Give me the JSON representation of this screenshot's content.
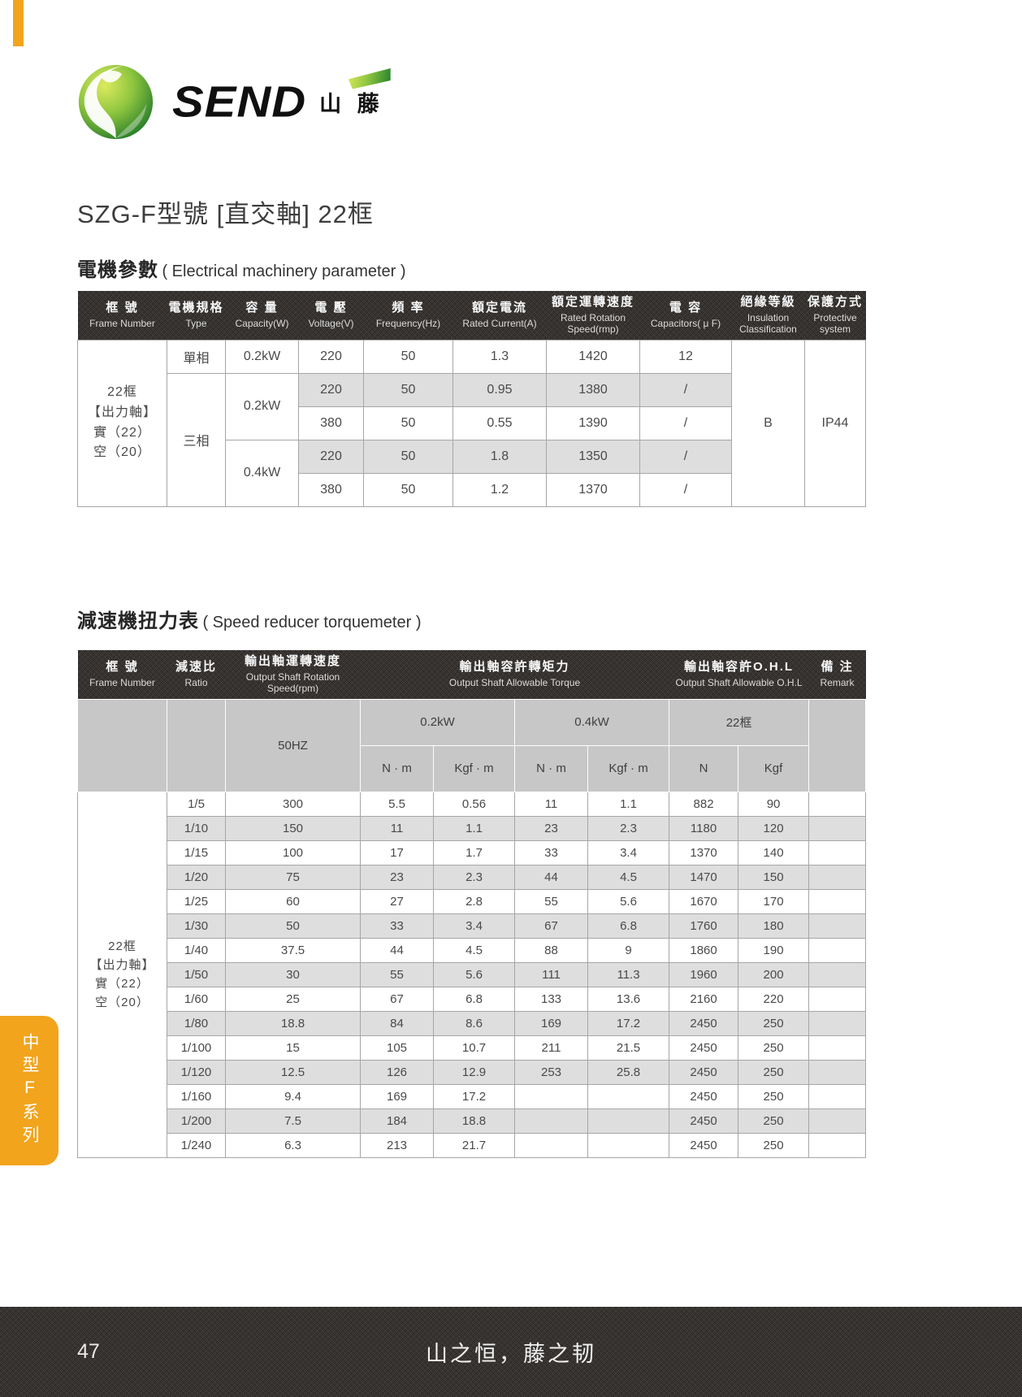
{
  "page": {
    "title": "SZG-F型號 [直交軸] 22框",
    "page_number": "47",
    "footer_slogan": "山之恒，藤之韧",
    "side_tab_label": "中型F系列"
  },
  "logo": {
    "brand": "SEND",
    "brand_cn": "山 藤",
    "icon": "green-globe-vine-icon"
  },
  "colors": {
    "accent_orange": "#F2A41D",
    "band_dark": "#2E2B29",
    "row_stripe": "#DEDEDE",
    "subheader_gray": "#C7C7C7"
  },
  "section1": {
    "title_cn": "電機參數",
    "title_en": "( Electrical machinery parameter )",
    "table": {
      "columns": [
        {
          "cn": "框 號",
          "en": "Frame Number"
        },
        {
          "cn": "電機規格",
          "en": "Type"
        },
        {
          "cn": "容 量",
          "en": "Capacity(W)"
        },
        {
          "cn": "電 壓",
          "en": "Voltage(V)"
        },
        {
          "cn": "頻 率",
          "en": "Frequency(Hz)"
        },
        {
          "cn": "額定電流",
          "en": "Rated Current(A)"
        },
        {
          "cn": "額定運轉速度",
          "en": "Rated Rotation Speed(rmp)"
        },
        {
          "cn": "電 容",
          "en": "Capacitors( μ F)"
        },
        {
          "cn": "絕緣等級",
          "en": "Insulation Classification"
        },
        {
          "cn": "保護方式",
          "en": "Protective system"
        }
      ],
      "frame_label": [
        "22框",
        "【出力軸】",
        "實（22）",
        "空（20）"
      ],
      "insulation": "B",
      "protective": "IP44",
      "rows": [
        {
          "type": "單相",
          "capacity": "0.2kW",
          "voltage": "220",
          "freq": "50",
          "current": "1.3",
          "speed": "1420",
          "cap": "12"
        },
        {
          "type": "三相",
          "capacity": "0.2kW",
          "voltage": "220",
          "freq": "50",
          "current": "0.95",
          "speed": "1380",
          "cap": "/"
        },
        {
          "voltage": "380",
          "freq": "50",
          "current": "0.55",
          "speed": "1390",
          "cap": "/"
        },
        {
          "capacity": "0.4kW",
          "voltage": "220",
          "freq": "50",
          "current": "1.8",
          "speed": "1350",
          "cap": "/"
        },
        {
          "voltage": "380",
          "freq": "50",
          "current": "1.2",
          "speed": "1370",
          "cap": "/"
        }
      ]
    }
  },
  "section2": {
    "title_cn": "減速機扭力表",
    "title_en": "( Speed reducer torquemeter )",
    "table": {
      "header": {
        "frame_cn": "框 號",
        "frame_en": "Frame Number",
        "ratio_cn": "減速比",
        "ratio_en": "Ratio",
        "speed_cn": "輸出軸運轉速度",
        "speed_en": "Output Shaft Rotation Speed(rpm)",
        "torque_cn": "輸出軸容許轉矩力",
        "torque_en": "Output Shaft Allowable Torque",
        "ohl_cn": "輸出軸容許O.H.L",
        "ohl_en": "Output Shaft Allowable O.H.L",
        "remark_cn": "備 注",
        "remark_en": "Remark"
      },
      "subheader": {
        "freq": "50HZ",
        "power_02": "0.2kW",
        "power_04": "0.4kW",
        "frame22": "22框"
      },
      "units": [
        "N · m",
        "Kgf · m",
        "N · m",
        "Kgf · m",
        "N",
        "Kgf"
      ],
      "frame_label": [
        "22框",
        "【出力軸】",
        "實（22）",
        "空（20）"
      ],
      "rows": [
        [
          "1/5",
          "300",
          "5.5",
          "0.56",
          "11",
          "1.1",
          "882",
          "90"
        ],
        [
          "1/10",
          "150",
          "11",
          "1.1",
          "23",
          "2.3",
          "1180",
          "120"
        ],
        [
          "1/15",
          "100",
          "17",
          "1.7",
          "33",
          "3.4",
          "1370",
          "140"
        ],
        [
          "1/20",
          "75",
          "23",
          "2.3",
          "44",
          "4.5",
          "1470",
          "150"
        ],
        [
          "1/25",
          "60",
          "27",
          "2.8",
          "55",
          "5.6",
          "1670",
          "170"
        ],
        [
          "1/30",
          "50",
          "33",
          "3.4",
          "67",
          "6.8",
          "1760",
          "180"
        ],
        [
          "1/40",
          "37.5",
          "44",
          "4.5",
          "88",
          "9",
          "1860",
          "190"
        ],
        [
          "1/50",
          "30",
          "55",
          "5.6",
          "111",
          "11.3",
          "1960",
          "200"
        ],
        [
          "1/60",
          "25",
          "67",
          "6.8",
          "133",
          "13.6",
          "2160",
          "220"
        ],
        [
          "1/80",
          "18.8",
          "84",
          "8.6",
          "169",
          "17.2",
          "2450",
          "250"
        ],
        [
          "1/100",
          "15",
          "105",
          "10.7",
          "211",
          "21.5",
          "2450",
          "250"
        ],
        [
          "1/120",
          "12.5",
          "126",
          "12.9",
          "253",
          "25.8",
          "2450",
          "250"
        ],
        [
          "1/160",
          "9.4",
          "169",
          "17.2",
          "",
          "",
          "2450",
          "250"
        ],
        [
          "1/200",
          "7.5",
          "184",
          "18.8",
          "",
          "",
          "2450",
          "250"
        ],
        [
          "1/240",
          "6.3",
          "213",
          "21.7",
          "",
          "",
          "2450",
          "250"
        ]
      ]
    }
  }
}
